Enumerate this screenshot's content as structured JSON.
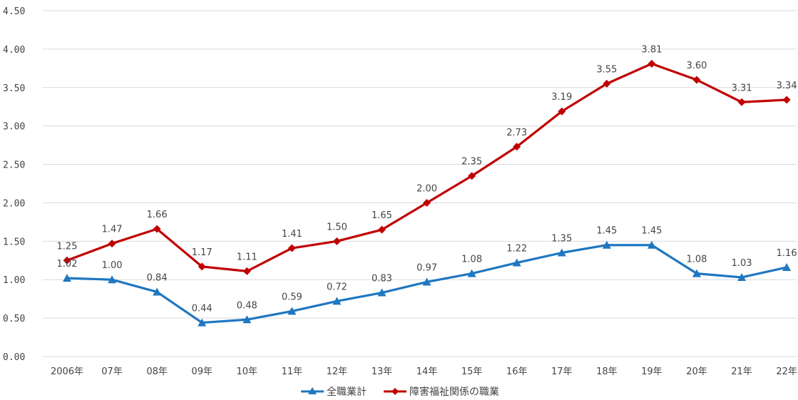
{
  "chart_data": {
    "type": "line",
    "categories": [
      "2006年",
      "07年",
      "08年",
      "09年",
      "10年",
      "11年",
      "12年",
      "13年",
      "14年",
      "15年",
      "16年",
      "17年",
      "18年",
      "19年",
      "20年",
      "21年",
      "22年"
    ],
    "y_ticks": [
      "0.00",
      "0.50",
      "1.00",
      "1.50",
      "2.00",
      "2.50",
      "3.00",
      "3.50",
      "4.00",
      "4.50"
    ],
    "ylim": [
      0,
      4.5
    ],
    "grid": true,
    "legend_position": "bottom-center",
    "series": [
      {
        "name": "全職業計",
        "color": "#1f77c0",
        "marker": "triangle",
        "values": [
          1.02,
          1.0,
          0.84,
          0.44,
          0.48,
          0.59,
          0.72,
          0.83,
          0.97,
          1.08,
          1.22,
          1.35,
          1.45,
          1.45,
          1.08,
          1.03,
          1.16
        ],
        "labels": [
          "1.02",
          "1.00",
          "0.84",
          "0.44",
          "0.48",
          "0.59",
          "0.72",
          "0.83",
          "0.97",
          "1.08",
          "1.22",
          "1.35",
          "1.45",
          "1.45",
          "1.08",
          "1.03",
          "1.16"
        ]
      },
      {
        "name": "障害福祉関係の職業",
        "color": "#c00000",
        "marker": "diamond",
        "values": [
          1.25,
          1.47,
          1.66,
          1.17,
          1.11,
          1.41,
          1.5,
          1.65,
          2.0,
          2.35,
          2.73,
          3.19,
          3.55,
          3.81,
          3.6,
          3.31,
          3.34
        ],
        "labels": [
          "1.25",
          "1.47",
          "1.66",
          "1.17",
          "1.11",
          "1.41",
          "1.50",
          "1.65",
          "2.00",
          "2.35",
          "2.73",
          "3.19",
          "3.55",
          "3.81",
          "3.60",
          "3.31",
          "3.34"
        ]
      }
    ]
  }
}
